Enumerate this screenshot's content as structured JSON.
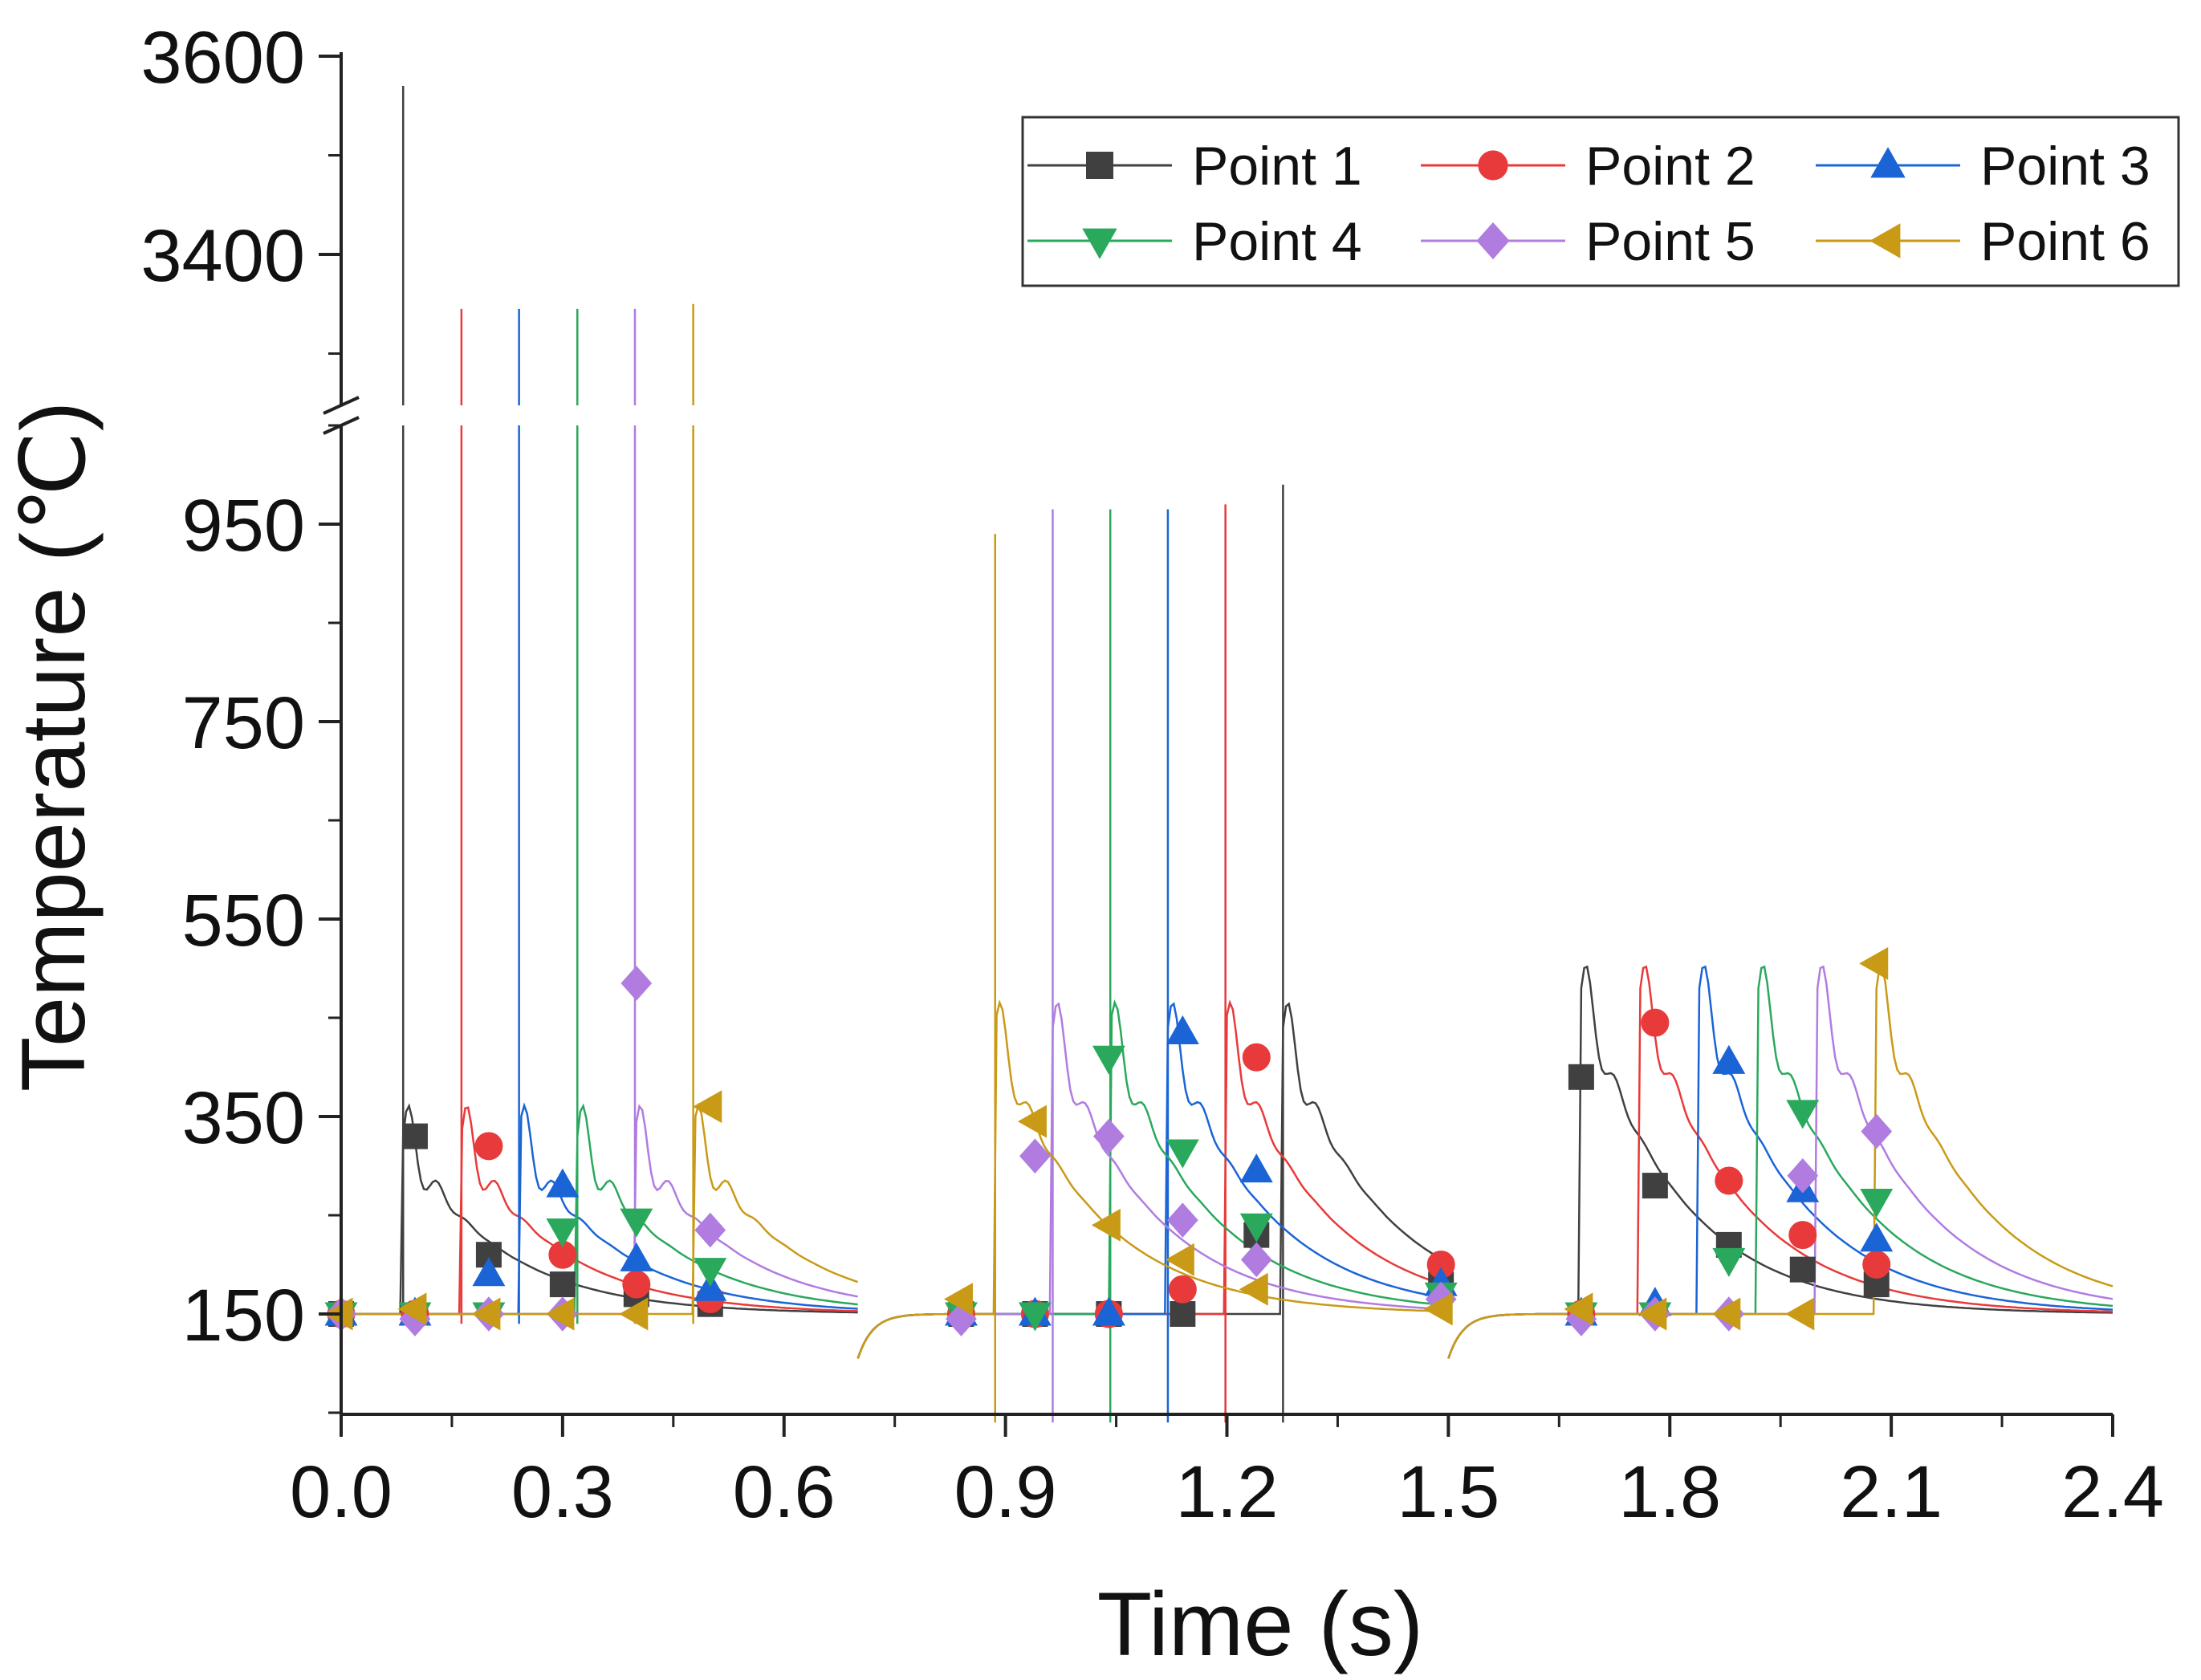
{
  "chart_data": {
    "type": "line",
    "xlabel": "Time (s)",
    "ylabel": "Temperature (℃)",
    "xlim": [
      0,
      2.4
    ],
    "x_ticks": [
      "0.0",
      "0.3",
      "0.6",
      "0.9",
      "1.2",
      "1.5",
      "1.8",
      "2.1",
      "2.4"
    ],
    "y_ticks_lower": [
      "150",
      "350",
      "550",
      "750",
      "950"
    ],
    "y_ticks_upper": [
      "3400",
      "3600"
    ],
    "y_axis_break": {
      "lower_range": [
        50,
        1050
      ],
      "upper_range": [
        3250,
        3600
      ]
    },
    "grid": false,
    "legend_position": "top-right",
    "series": [
      {
        "name": "Point 1",
        "color": "#404040",
        "marker": "square",
        "spikes": [
          [
            0.084,
            3570
          ],
          [
            1.276,
            990
          ]
        ],
        "markers": [
          [
            0.0,
            150
          ],
          [
            0.1,
            330
          ],
          [
            0.2,
            210
          ],
          [
            0.3,
            180
          ],
          [
            0.4,
            170
          ],
          [
            0.5,
            160
          ],
          [
            0.84,
            150
          ],
          [
            0.94,
            150
          ],
          [
            1.04,
            150
          ],
          [
            1.14,
            150
          ],
          [
            1.24,
            230
          ],
          [
            1.49,
            180
          ],
          [
            1.68,
            390
          ],
          [
            1.78,
            280
          ],
          [
            1.88,
            220
          ],
          [
            1.98,
            195
          ],
          [
            2.08,
            180
          ]
        ]
      },
      {
        "name": "Point 2",
        "color": "#e83a3a",
        "marker": "circle",
        "spikes": [
          [
            0.163,
            3345
          ],
          [
            1.198,
            970
          ]
        ],
        "markers": [
          [
            0.0,
            150
          ],
          [
            0.1,
            150
          ],
          [
            0.2,
            320
          ],
          [
            0.3,
            210
          ],
          [
            0.4,
            180
          ],
          [
            0.5,
            165
          ],
          [
            0.84,
            150
          ],
          [
            0.94,
            150
          ],
          [
            1.04,
            150
          ],
          [
            1.14,
            175
          ],
          [
            1.24,
            410
          ],
          [
            1.49,
            200
          ],
          [
            1.68,
            150
          ],
          [
            1.78,
            445
          ],
          [
            1.88,
            285
          ],
          [
            1.98,
            230
          ],
          [
            2.08,
            200
          ]
        ]
      },
      {
        "name": "Point 3",
        "color": "#1a64d6",
        "marker": "triangle-up",
        "spikes": [
          [
            0.241,
            3345
          ],
          [
            1.12,
            965
          ]
        ],
        "markers": [
          [
            0.0,
            150
          ],
          [
            0.1,
            150
          ],
          [
            0.2,
            190
          ],
          [
            0.3,
            280
          ],
          [
            0.4,
            205
          ],
          [
            0.5,
            175
          ],
          [
            0.84,
            150
          ],
          [
            0.94,
            150
          ],
          [
            1.04,
            150
          ],
          [
            1.14,
            435
          ],
          [
            1.24,
            295
          ],
          [
            1.49,
            180
          ],
          [
            1.68,
            150
          ],
          [
            1.78,
            160
          ],
          [
            1.88,
            405
          ],
          [
            1.98,
            275
          ],
          [
            2.08,
            225
          ]
        ]
      },
      {
        "name": "Point 4",
        "color": "#2aa85c",
        "marker": "triangle-down",
        "spikes": [
          [
            0.32,
            3345
          ],
          [
            1.042,
            965
          ]
        ],
        "markers": [
          [
            0.0,
            150
          ],
          [
            0.1,
            150
          ],
          [
            0.2,
            150
          ],
          [
            0.3,
            235
          ],
          [
            0.4,
            245
          ],
          [
            0.5,
            195
          ],
          [
            0.84,
            150
          ],
          [
            0.94,
            150
          ],
          [
            1.04,
            410
          ],
          [
            1.14,
            315
          ],
          [
            1.24,
            240
          ],
          [
            1.49,
            170
          ],
          [
            1.68,
            150
          ],
          [
            1.78,
            150
          ],
          [
            1.88,
            205
          ],
          [
            1.98,
            355
          ],
          [
            2.08,
            265
          ]
        ]
      },
      {
        "name": "Point 5",
        "color": "#b07ce0",
        "marker": "diamond",
        "spikes": [
          [
            0.398,
            3345
          ],
          [
            0.964,
            965
          ]
        ],
        "markers": [
          [
            0.0,
            150
          ],
          [
            0.1,
            145
          ],
          [
            0.2,
            150
          ],
          [
            0.3,
            150
          ],
          [
            0.4,
            485
          ],
          [
            0.5,
            235
          ],
          [
            0.84,
            145
          ],
          [
            0.94,
            310
          ],
          [
            1.04,
            330
          ],
          [
            1.14,
            245
          ],
          [
            1.24,
            205
          ],
          [
            1.49,
            165
          ],
          [
            1.68,
            145
          ],
          [
            1.78,
            150
          ],
          [
            1.88,
            150
          ],
          [
            1.98,
            290
          ],
          [
            2.08,
            335
          ]
        ]
      },
      {
        "name": "Point 6",
        "color": "#c99a16",
        "marker": "triangle-left",
        "spikes": [
          [
            0.477,
            3350
          ],
          [
            0.886,
            940
          ]
        ],
        "markers": [
          [
            0.0,
            150
          ],
          [
            0.1,
            155
          ],
          [
            0.2,
            150
          ],
          [
            0.3,
            150
          ],
          [
            0.4,
            150
          ],
          [
            0.5,
            360
          ],
          [
            0.84,
            165
          ],
          [
            0.94,
            345
          ],
          [
            1.04,
            240
          ],
          [
            1.14,
            205
          ],
          [
            1.24,
            175
          ],
          [
            1.49,
            155
          ],
          [
            1.68,
            155
          ],
          [
            1.78,
            150
          ],
          [
            1.88,
            150
          ],
          [
            1.98,
            150
          ],
          [
            2.08,
            505
          ]
        ]
      }
    ]
  }
}
